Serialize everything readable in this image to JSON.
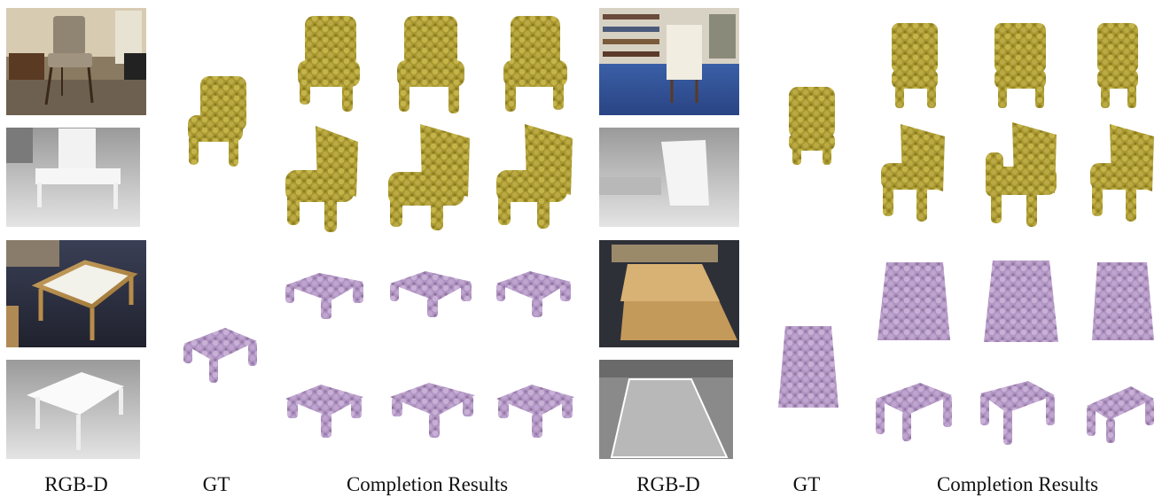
{
  "captions": {
    "left_rgbd": "RGB-D",
    "left_gt": "GT",
    "left_completion": "Completion Results",
    "right_rgbd": "RGB-D",
    "right_gt": "GT",
    "right_completion": "Completion Results"
  },
  "colors": {
    "chair_points": "#b2a23a",
    "table_points": "#b79ac8",
    "depth_background": "#d8d8d8"
  }
}
